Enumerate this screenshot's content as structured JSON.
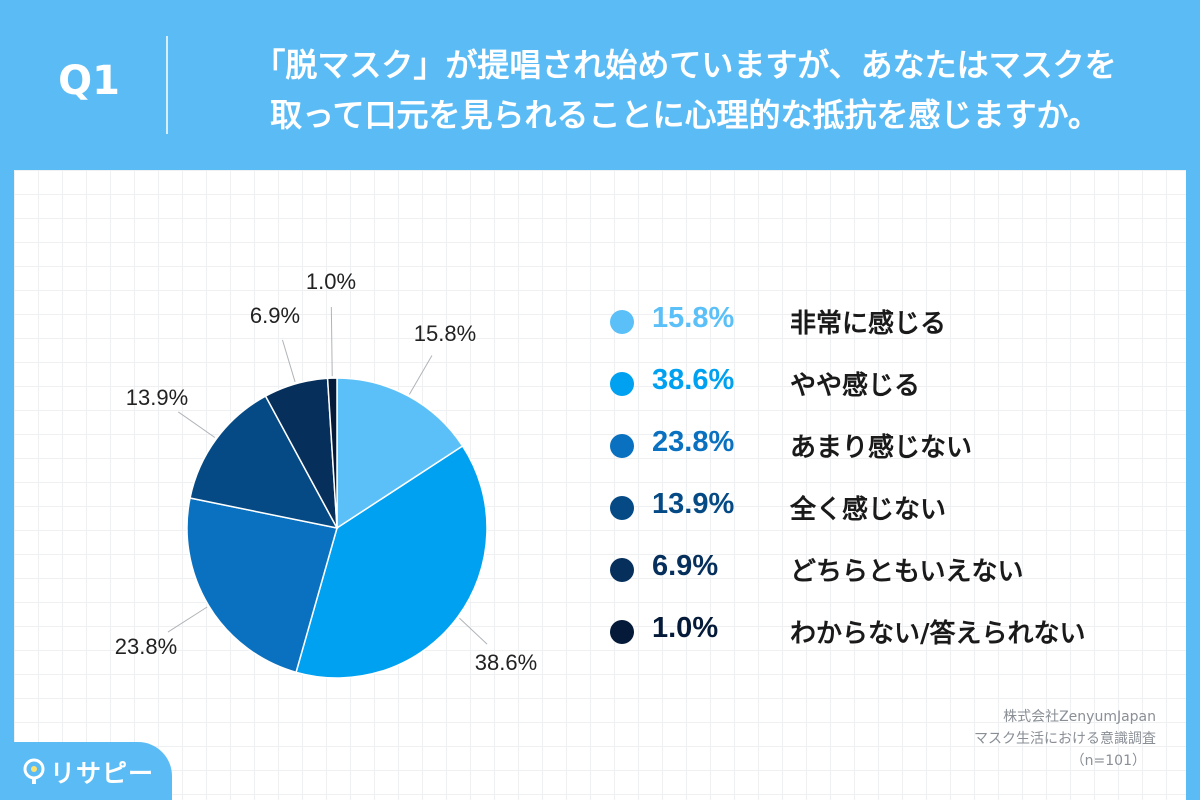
{
  "header": {
    "q_label": "Q1",
    "question_line1": "「脱マスク」が提唱され始めていますが、あなたはマスクを",
    "question_line2": "取って口元を見られることに心理的な抵抗を感じますか。"
  },
  "chart_data": {
    "type": "pie",
    "unit": "%",
    "categories": [
      "非常に感じる",
      "やや感じる",
      "あまり感じない",
      "全く感じない",
      "どちらともいえない",
      "わからない/答えられない"
    ],
    "values": [
      15.8,
      38.6,
      23.8,
      13.9,
      6.9,
      1.0
    ],
    "labels": [
      "15.8%",
      "38.6%",
      "23.8%",
      "13.9%",
      "6.9%",
      "1.0%"
    ],
    "colors": [
      "#5bc0f8",
      "#00a1f0",
      "#0a71c0",
      "#054a85",
      "#062f5c",
      "#041a38"
    ],
    "start_angle_deg": 0,
    "direction": "clockwise",
    "legend_position": "right"
  },
  "legend": [
    {
      "pct": "15.8%",
      "label": "非常に感じる"
    },
    {
      "pct": "38.6%",
      "label": "やや感じる"
    },
    {
      "pct": "23.8%",
      "label": "あまり感じない"
    },
    {
      "pct": "13.9%",
      "label": "全く感じない"
    },
    {
      "pct": "6.9%",
      "label": "どちらともいえない"
    },
    {
      "pct": "1.0%",
      "label": "わからない/答えられない"
    }
  ],
  "source": {
    "line1": "株式会社ZenyumJapan",
    "line2": "マスク生活における意識調査",
    "line3": "（n=101）"
  },
  "brand": {
    "logo_text": "リサピー",
    "logo_icon": "lightbulb-icon"
  },
  "colors": {
    "header_bg": "#5bbcf5",
    "card_bg": "#ffffff"
  }
}
